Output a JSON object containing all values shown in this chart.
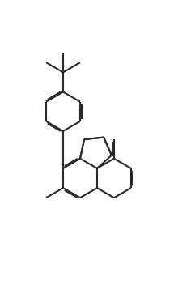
{
  "bg_color": "#ffffff",
  "line_color": "#2a2a2a",
  "line_width": 1.5,
  "dbo": 0.06,
  "figsize": [
    2.2,
    3.52
  ],
  "dpi": 100
}
